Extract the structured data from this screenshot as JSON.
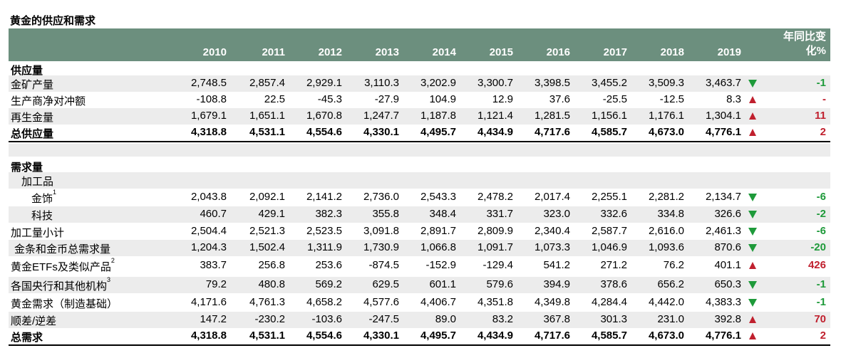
{
  "title": "黄金的供应和需求",
  "years": [
    "2010",
    "2011",
    "2012",
    "2013",
    "2014",
    "2015",
    "2016",
    "2017",
    "2018",
    "2019"
  ],
  "yoy_header": [
    "年同比变",
    "化%"
  ],
  "supply_heading": "供应量",
  "demand_heading": "需求量",
  "fabrication_heading": "加工品",
  "colors": {
    "header_bg": "#6c8f7e",
    "up": "#c0202e",
    "down": "#1e9a3a",
    "shade": "#ececec"
  },
  "supply_rows": [
    {
      "label": "金矿产量",
      "values": [
        "2,748.5",
        "2,857.4",
        "2,929.1",
        "3,110.3",
        "3,202.9",
        "3,300.7",
        "3,398.5",
        "3,455.2",
        "3,509.3",
        "3,463.7"
      ],
      "trend": "down",
      "yoy": "-1"
    },
    {
      "label": "生产商净对冲额",
      "values": [
        "-108.8",
        "22.5",
        "-45.3",
        "-27.9",
        "104.9",
        "12.9",
        "37.6",
        "-25.5",
        "-12.5",
        "8.3"
      ],
      "trend": "up",
      "yoy": "-"
    },
    {
      "label": "再生金量",
      "values": [
        "1,679.1",
        "1,651.1",
        "1,670.8",
        "1,247.7",
        "1,187.8",
        "1,121.4",
        "1,281.5",
        "1,156.1",
        "1,176.1",
        "1,304.1"
      ],
      "trend": "up",
      "yoy": "11"
    },
    {
      "label": "总供应量",
      "values": [
        "4,318.8",
        "4,531.1",
        "4,554.6",
        "4,330.1",
        "4,495.7",
        "4,434.9",
        "4,717.6",
        "4,585.7",
        "4,673.0",
        "4,776.1"
      ],
      "trend": "up",
      "yoy": "2"
    }
  ],
  "demand_rows": [
    {
      "label": "金饰",
      "sup": "1",
      "values": [
        "2,043.8",
        "2,092.1",
        "2,141.2",
        "2,736.0",
        "2,543.3",
        "2,478.2",
        "2,017.4",
        "2,255.1",
        "2,281.2",
        "2,134.7"
      ],
      "trend": "down",
      "yoy": "-6"
    },
    {
      "label": "科技",
      "sup": "",
      "values": [
        "460.7",
        "429.1",
        "382.3",
        "355.8",
        "348.4",
        "331.7",
        "323.0",
        "332.6",
        "334.8",
        "326.6"
      ],
      "trend": "down",
      "yoy": "-2"
    },
    {
      "label": "加工量小计",
      "sup": "",
      "values": [
        "2,504.4",
        "2,521.3",
        "2,523.5",
        "3,091.8",
        "2,891.7",
        "2,809.9",
        "2,340.4",
        "2,587.7",
        "2,616.0",
        "2,461.3"
      ],
      "trend": "down",
      "yoy": "-6"
    },
    {
      "label": "金条和金币总需求量",
      "sup": "",
      "values": [
        "1,204.3",
        "1,502.4",
        "1,311.9",
        "1,730.9",
        "1,066.8",
        "1,091.7",
        "1,073.3",
        "1,046.9",
        "1,093.6",
        "870.6"
      ],
      "trend": "down",
      "yoy": "-20"
    },
    {
      "label": "黄金ETFs及类似产品",
      "sup": "2",
      "values": [
        "383.7",
        "256.8",
        "253.6",
        "-874.5",
        "-152.9",
        "-129.4",
        "541.2",
        "271.2",
        "76.2",
        "401.1"
      ],
      "trend": "up",
      "yoy": "426"
    },
    {
      "label": "各国央行和其他机构",
      "sup": "3",
      "values": [
        "79.2",
        "480.8",
        "569.2",
        "629.5",
        "601.1",
        "579.6",
        "394.9",
        "378.6",
        "656.2",
        "650.3"
      ],
      "trend": "down",
      "yoy": "-1"
    },
    {
      "label": "黄金需求（制造基础）",
      "sup": "",
      "values": [
        "4,171.6",
        "4,761.3",
        "4,658.2",
        "4,577.6",
        "4,406.7",
        "4,351.8",
        "4,349.8",
        "4,284.4",
        "4,442.0",
        "4,383.3"
      ],
      "trend": "down",
      "yoy": "-1"
    },
    {
      "label": "顺差/逆差",
      "sup": "",
      "values": [
        "147.2",
        "-230.2",
        "-103.6",
        "-247.5",
        "89.0",
        "83.2",
        "367.8",
        "301.3",
        "231.0",
        "392.8"
      ],
      "trend": "up",
      "yoy": "70"
    },
    {
      "label": "总需求",
      "sup": "",
      "values": [
        "4,318.8",
        "4,531.1",
        "4,554.6",
        "4,330.1",
        "4,495.7",
        "4,434.9",
        "4,717.6",
        "4,585.7",
        "4,673.0",
        "4,776.1"
      ],
      "trend": "up",
      "yoy": "2"
    }
  ]
}
